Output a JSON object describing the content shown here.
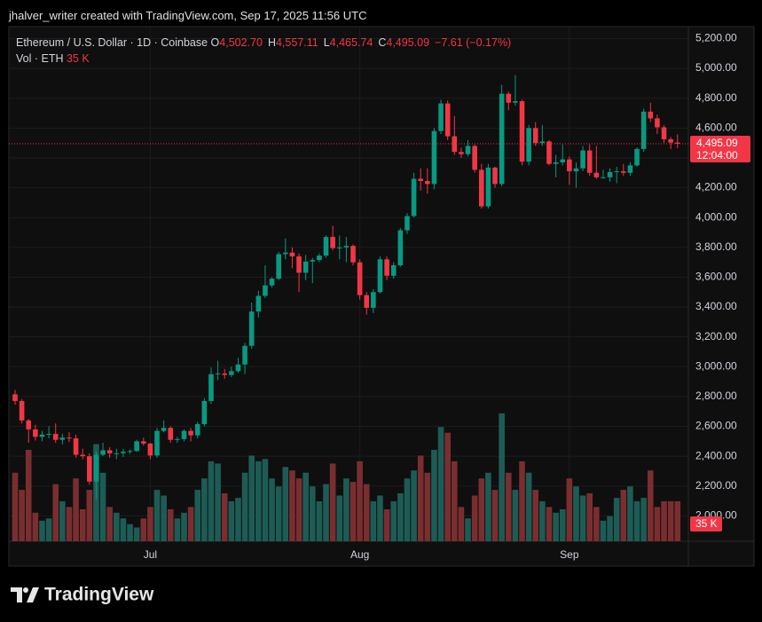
{
  "header": "jhalver_writer created with TradingView.com, Sep 17, 2025 11:56 UTC",
  "brand": "TradingView",
  "chart_data": {
    "type": "candlestick",
    "legend": {
      "symbol": "Ethereum / U.S. Dollar · 1D · Coinbase",
      "fields": [
        {
          "key": "O",
          "label": "4,502.70"
        },
        {
          "key": "H",
          "label": "4,557.11"
        },
        {
          "key": "L",
          "label": "4,465.74"
        },
        {
          "key": "C",
          "label": "4,495.09"
        }
      ],
      "change": "−7.61 (−0.17%)",
      "volume_title": "Vol · ETH",
      "volume_label": "35 K"
    },
    "last_price_label": "4,495.09",
    "countdown": "12:04:00",
    "categories": [
      null,
      null,
      null,
      null,
      null,
      null,
      null,
      null,
      null,
      null,
      null,
      null,
      null,
      null,
      null,
      null,
      null,
      null,
      null,
      null,
      "Jul",
      null,
      null,
      null,
      null,
      null,
      null,
      null,
      null,
      null,
      null,
      null,
      null,
      null,
      null,
      null,
      null,
      null,
      null,
      null,
      null,
      null,
      null,
      null,
      null,
      null,
      null,
      null,
      null,
      null,
      null,
      "Aug",
      null,
      null,
      null,
      null,
      null,
      null,
      null,
      null,
      null,
      null,
      null,
      null,
      null,
      null,
      null,
      null,
      null,
      null,
      null,
      null,
      null,
      null,
      null,
      null,
      null,
      null,
      null,
      null,
      null,
      null,
      "Sep",
      null,
      null,
      null,
      null,
      null,
      null,
      null,
      null,
      null,
      null,
      null,
      null,
      null,
      null,
      null,
      null
    ],
    "open": [
      2815,
      2770,
      2640,
      2580,
      2530,
      2545,
      2550,
      2510,
      2525,
      2520,
      2410,
      2400,
      2230,
      2410,
      2440,
      2420,
      2420,
      2430,
      2435,
      2500,
      2485,
      2405,
      2570,
      2590,
      2510,
      2515,
      2570,
      2540,
      2615,
      2770,
      2950,
      2955,
      2945,
      2970,
      3015,
      3140,
      3370,
      3475,
      3545,
      3590,
      3755,
      3765,
      3740,
      3630,
      3705,
      3715,
      3745,
      3870,
      3795,
      3800,
      3810,
      3700,
      3480,
      3395,
      3500,
      3720,
      3610,
      3680,
      3915,
      4010,
      4260,
      4245,
      4225,
      4580,
      4765,
      4545,
      4440,
      4425,
      4480,
      4320,
      4075,
      4335,
      4225,
      4830,
      4770,
      4780,
      4375,
      4600,
      4500,
      4510,
      4360,
      4370,
      4390,
      4310,
      4330,
      4450,
      4300,
      4270,
      4270,
      4305,
      4310,
      4300,
      4350,
      4460,
      4710,
      4665,
      4605,
      4525,
      4502.7
    ],
    "high": [
      2845,
      2785,
      2650,
      2610,
      2570,
      2600,
      2620,
      2550,
      2560,
      2545,
      2450,
      2420,
      2430,
      2490,
      2460,
      2450,
      2450,
      2445,
      2510,
      2525,
      2490,
      2590,
      2640,
      2600,
      2530,
      2580,
      2590,
      2630,
      2790,
      2995,
      3040,
      2985,
      3000,
      3060,
      3160,
      3430,
      3510,
      3680,
      3600,
      3770,
      3860,
      3800,
      3760,
      3750,
      3730,
      3760,
      3880,
      3945,
      3880,
      3870,
      3820,
      3720,
      3500,
      3520,
      3740,
      3740,
      3700,
      3930,
      4030,
      4300,
      4330,
      4330,
      4600,
      4790,
      4785,
      4680,
      4470,
      4520,
      4490,
      4360,
      4360,
      4340,
      4890,
      4845,
      4955,
      4790,
      4620,
      4640,
      4620,
      4520,
      4420,
      4490,
      4410,
      4370,
      4480,
      4490,
      4480,
      4320,
      4330,
      4340,
      4360,
      4370,
      4470,
      4730,
      4770,
      4690,
      4620,
      4540,
      4557.11
    ],
    "low": [
      2745,
      2620,
      2490,
      2505,
      2500,
      2520,
      2490,
      2480,
      2495,
      2390,
      2380,
      2210,
      2110,
      2400,
      2390,
      2380,
      2395,
      2415,
      2430,
      2470,
      2380,
      2390,
      2560,
      2490,
      2490,
      2500,
      2500,
      2520,
      2600,
      2750,
      2910,
      2920,
      2930,
      2960,
      2950,
      3120,
      3330,
      3460,
      3530,
      3580,
      3720,
      3660,
      3500,
      3580,
      3560,
      3700,
      3730,
      3780,
      3720,
      3700,
      3680,
      3450,
      3350,
      3360,
      3490,
      3580,
      3590,
      3670,
      3890,
      4000,
      4180,
      4160,
      4190,
      4560,
      4520,
      4420,
      4400,
      4410,
      4300,
      4060,
      4060,
      4200,
      4210,
      4720,
      4750,
      4350,
      4350,
      4480,
      4480,
      4350,
      4270,
      4350,
      4220,
      4200,
      4310,
      4280,
      4260,
      4260,
      4240,
      4230,
      4280,
      4280,
      4340,
      4440,
      4640,
      4560,
      4500,
      4460,
      4465.74
    ],
    "close": [
      2770,
      2640,
      2580,
      2530,
      2545,
      2550,
      2510,
      2525,
      2520,
      2410,
      2400,
      2230,
      2410,
      2440,
      2420,
      2420,
      2430,
      2435,
      2500,
      2485,
      2405,
      2570,
      2590,
      2510,
      2515,
      2570,
      2540,
      2615,
      2770,
      2950,
      2955,
      2945,
      2970,
      3015,
      3140,
      3370,
      3475,
      3545,
      3590,
      3755,
      3765,
      3740,
      3630,
      3705,
      3715,
      3745,
      3870,
      3795,
      3800,
      3810,
      3700,
      3480,
      3395,
      3500,
      3720,
      3610,
      3680,
      3915,
      4010,
      4260,
      4245,
      4225,
      4580,
      4765,
      4545,
      4440,
      4425,
      4480,
      4320,
      4075,
      4335,
      4225,
      4830,
      4770,
      4780,
      4375,
      4600,
      4500,
      4510,
      4360,
      4370,
      4390,
      4310,
      4330,
      4450,
      4300,
      4270,
      4270,
      4305,
      4310,
      4300,
      4350,
      4460,
      4710,
      4665,
      4605,
      4525,
      4502.7,
      4495.09
    ],
    "volume": [
      60,
      45,
      80,
      25,
      18,
      20,
      50,
      35,
      30,
      55,
      28,
      45,
      85,
      60,
      30,
      25,
      20,
      15,
      12,
      20,
      30,
      45,
      40,
      28,
      20,
      25,
      30,
      45,
      55,
      70,
      68,
      42,
      35,
      38,
      60,
      75,
      70,
      72,
      55,
      48,
      65,
      62,
      55,
      60,
      48,
      35,
      50,
      68,
      40,
      55,
      52,
      70,
      50,
      35,
      40,
      28,
      35,
      42,
      55,
      62,
      75,
      60,
      80,
      100,
      95,
      70,
      30,
      20,
      40,
      55,
      60,
      45,
      112,
      60,
      45,
      70,
      60,
      45,
      35,
      30,
      25,
      28,
      55,
      48,
      40,
      42,
      30,
      18,
      22,
      38,
      45,
      48,
      35,
      38,
      62,
      30,
      35,
      35,
      35
    ],
    "volume_ylim": [
      0,
      160
    ],
    "ylim": [
      1830,
      5280
    ],
    "yticks": [
      {
        "value": 2000,
        "label": "2,000.00"
      },
      {
        "value": 2200,
        "label": "2,200.00"
      },
      {
        "value": 2400,
        "label": "2,400.00"
      },
      {
        "value": 2600,
        "label": "2,600.00"
      },
      {
        "value": 2800,
        "label": "2,800.00"
      },
      {
        "value": 3000,
        "label": "3,000.00"
      },
      {
        "value": 3200,
        "label": "3,200.00"
      },
      {
        "value": 3400,
        "label": "3,400.00"
      },
      {
        "value": 3600,
        "label": "3,600.00"
      },
      {
        "value": 3800,
        "label": "3,800.00"
      },
      {
        "value": 4000,
        "label": "4,000.00"
      },
      {
        "value": 4200,
        "label": "4,200.00"
      },
      {
        "value": 4400,
        "label": "4,400.00"
      },
      {
        "value": 4600,
        "label": "4,600.00"
      },
      {
        "value": 4800,
        "label": "4,800.00"
      },
      {
        "value": 5000,
        "label": "5,000.00"
      },
      {
        "value": 5200,
        "label": "5,200.00"
      }
    ],
    "grid": true,
    "up_color": "#089981",
    "down_color": "#f23645",
    "volume_up_color": "#1d5c55",
    "volume_down_color": "#7a2e30"
  }
}
